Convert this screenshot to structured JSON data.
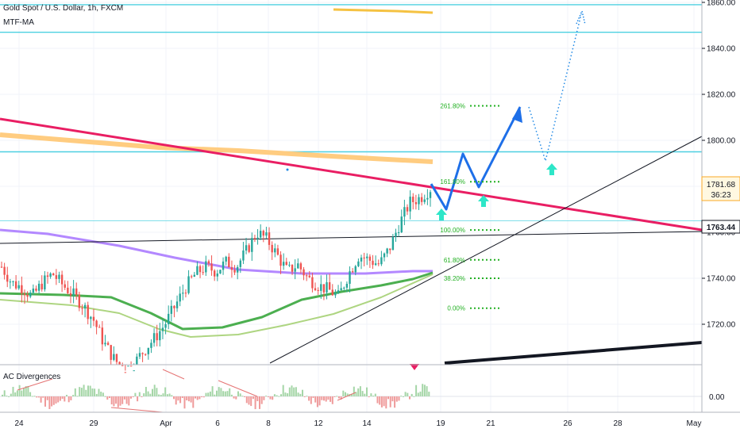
{
  "header": {
    "symbol_title": "Gold Spot / U.S. Dollar, 1h, FXCM",
    "indicator": "MTF-MA",
    "sub_indicator": "AC Divergences"
  },
  "colors": {
    "up": "#26a69a",
    "down": "#ef5350",
    "trendline": "#e91e63",
    "cyan_line": "#4dd0e1",
    "forecast": "#1e6fe8",
    "arrow": "#2ee6c8",
    "fib": "#22b022",
    "ma_purple": "#b388ff",
    "ma_green": "#4caf50",
    "ma_light": "#aed581",
    "ma_orange": "#ffcc80"
  },
  "price_badges": {
    "current_price": "1781.68",
    "countdown": "36:23",
    "second_price": "1763.44"
  },
  "chart_data": {
    "type": "candlestick",
    "title": "Gold Spot / U.S. Dollar, 1h, FXCM",
    "y_axis": {
      "range": [
        1702,
        1862
      ],
      "ticks": [
        1720,
        1740,
        1760,
        1780,
        1800,
        1820,
        1840,
        1860
      ],
      "tick_labels": [
        "1720.00",
        "1740.00",
        "1760.00",
        "1780.00",
        "1800.00",
        "1820.00",
        "1840.00",
        "1860.00"
      ]
    },
    "x_axis": {
      "tick_labels": [
        "24",
        "29",
        "Apr",
        "6",
        "8",
        "12",
        "14",
        "19",
        "21",
        "26",
        "28",
        "May"
      ]
    },
    "horizontal_levels": [
      1859,
      1847,
      1795,
      1765
    ],
    "fib_levels": [
      {
        "label": "261.80%",
        "price": 1815
      },
      {
        "label": "161.80%",
        "price": 1782
      },
      {
        "label": "100.00%",
        "price": 1761
      },
      {
        "label": "61.80%",
        "price": 1748
      },
      {
        "label": "38.20%",
        "price": 1740
      },
      {
        "label": "0.00%",
        "price": 1727
      }
    ],
    "price_path": [
      1745,
      1738,
      1736,
      1732,
      1738,
      1742,
      1737,
      1733,
      1728,
      1722,
      1712,
      1705,
      1700,
      1703,
      1709,
      1714,
      1720,
      1728,
      1736,
      1742,
      1745,
      1743,
      1747,
      1745,
      1752,
      1760,
      1757,
      1750,
      1743,
      1746,
      1740,
      1737,
      1735,
      1732,
      1742,
      1750,
      1748,
      1746,
      1753,
      1764,
      1773,
      1775,
      1779
    ]
  },
  "sub_chart": {
    "tick_labels": [
      "0.00"
    ]
  }
}
